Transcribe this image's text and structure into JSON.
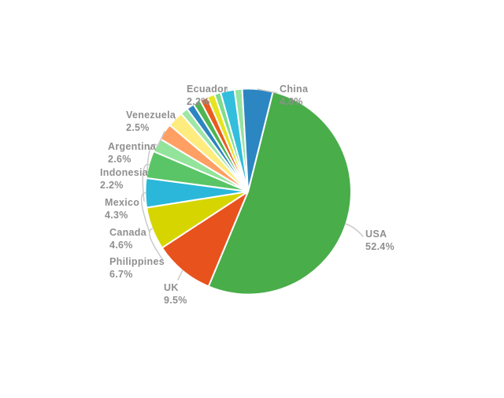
{
  "chart_data": {
    "type": "pie",
    "title": "",
    "value_suffix": "%",
    "direction": "clockwise",
    "start_angle_deg": 14,
    "legend": "none",
    "segments": [
      {
        "label": "USA",
        "value": 52.4,
        "color": "#49ad49"
      },
      {
        "label": "UK",
        "value": 9.5,
        "color": "#e8521d"
      },
      {
        "label": "Philippines",
        "value": 6.7,
        "color": "#d6d500"
      },
      {
        "label": "Canada",
        "value": 4.6,
        "color": "#2ab7d9"
      },
      {
        "label": "Mexico",
        "value": 4.3,
        "color": "#5ac566"
      },
      {
        "label": "Indonesia",
        "value": 2.2,
        "color": "#92e49b"
      },
      {
        "label": "Argentina",
        "value": 2.6,
        "color": "#ff9f63"
      },
      {
        "label": "Venezuela",
        "value": 2.5,
        "color": "#ffec7e"
      },
      {
        "label": "",
        "value": 1.2,
        "color": "#9fe7a6"
      },
      {
        "label": "",
        "value": 1.2,
        "color": "#2b85c0"
      },
      {
        "label": "",
        "value": 1.2,
        "color": "#4fb551"
      },
      {
        "label": "",
        "value": 1.2,
        "color": "#e95c1e"
      },
      {
        "label": "",
        "value": 1.2,
        "color": "#e6e41e"
      },
      {
        "label": "",
        "value": 1.0,
        "color": "#7edc8d"
      },
      {
        "label": "Ecuador",
        "value": 2.2,
        "color": "#33bedd"
      },
      {
        "label": "",
        "value": 1.2,
        "color": "#95e3a1"
      },
      {
        "label": "China",
        "value": 4.8,
        "color": "#2c86c2"
      }
    ]
  },
  "colors": {
    "background": "#ffffff",
    "label_text": "#8f8f8f",
    "leader_line": "#cbcbcb",
    "slice_separator": "#ffffff"
  }
}
